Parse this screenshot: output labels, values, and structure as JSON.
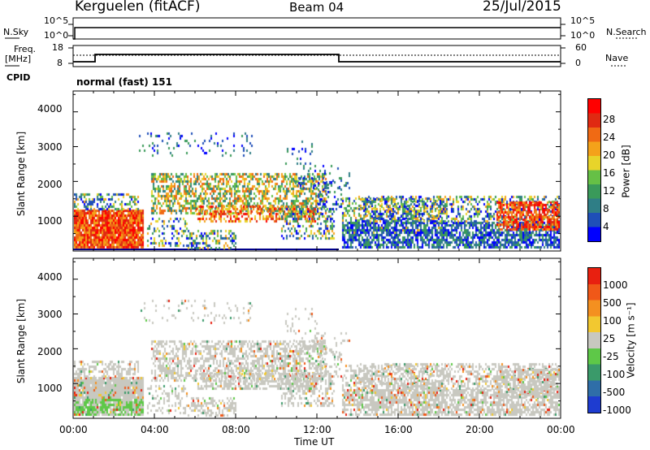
{
  "header": {
    "station": "Kerguelen (fitACF)",
    "beam": "Beam 04",
    "date": "25/Jul/2015"
  },
  "top_panel": {
    "left_label": "N.Sky",
    "left_ticks": [
      "10^5",
      "10^0"
    ],
    "right_ticks": [
      "10^5",
      "10^0"
    ],
    "right_label": "N.Search"
  },
  "freq_panel": {
    "left_label_1": "Freq.",
    "left_label_2": "[MHz]",
    "left_ticks": [
      "18",
      "8"
    ],
    "right_ticks": [
      "60",
      "0"
    ],
    "right_label": "Nave"
  },
  "cpid": {
    "label": "CPID",
    "value": "normal (fast) 151"
  },
  "chart_data": [
    {
      "type": "heatmap",
      "name": "power",
      "ylabel": "Slant Range [km]",
      "y_ticks": [
        "4000",
        "3000",
        "2000",
        "1000"
      ],
      "colorbar_label": "Power [dB]",
      "colorbar_ticks": [
        "28",
        "24",
        "20",
        "16",
        "12",
        "8",
        "4"
      ],
      "colors": [
        "#0000ff",
        "#1f4fb8",
        "#2f7e86",
        "#3a9a5a",
        "#66c046",
        "#e8d42a",
        "#f4a21a",
        "#f06a14",
        "#e02a12",
        "#ff0000"
      ]
    },
    {
      "type": "heatmap",
      "name": "velocity",
      "ylabel": "Slant Range [km]",
      "y_ticks": [
        "4000",
        "3000",
        "2000",
        "1000"
      ],
      "colorbar_label": "Velocity [m s⁻¹]",
      "colorbar_ticks": [
        "1000",
        "500",
        "100",
        "25",
        "-25",
        "-100",
        "-500",
        "-1000"
      ],
      "colors": [
        "#1e3cd0",
        "#2f6ea8",
        "#3a9a6a",
        "#5ec848",
        "#c8c8c0",
        "#f2c830",
        "#f49020",
        "#f05818",
        "#e82010"
      ]
    }
  ],
  "x_axis": {
    "ticks": [
      "00:00",
      "04:00",
      "08:00",
      "12:00",
      "16:00",
      "20:00",
      "00:00"
    ],
    "label": "Time UT"
  }
}
